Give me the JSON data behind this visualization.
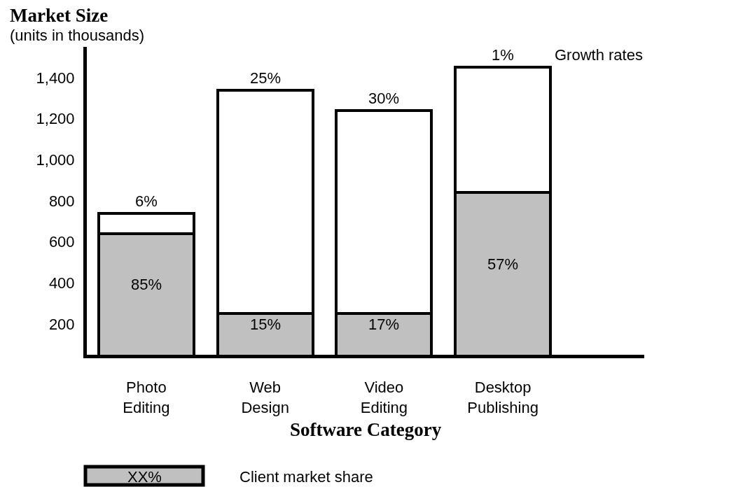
{
  "chart_data": {
    "type": "bar",
    "ylabel": "Market Size",
    "xlabel": "Software Category",
    "annotations": [
      "(units in thousands)",
      "Growth rates",
      "XX%",
      "85%",
      "15%",
      "17%",
      "57%",
      {
        "text": "6%",
        "x": "Photo Editing",
        "y": 740
      },
      {
        "text": "25%",
        "x": "Web Design",
        "y": 1340
      },
      {
        "text": "30%",
        "x": "Video Editing",
        "y": 1240
      },
      {
        "text": "1%",
        "x": "Desktop Publishing",
        "y": 1450
      }
    ],
    "categories": [
      "Photo Editing",
      "Web Design",
      "Video Editing",
      "Desktop Publishing"
    ],
    "stacked": true,
    "series": [
      {
        "name": "Client market share",
        "color": "#c0c0c0",
        "values": [
          640,
          250,
          250,
          840
        ]
      },
      {
        "color": "#ffffff",
        "values": [
          100,
          1090,
          990,
          610
        ]
      }
    ],
    "ylim": [
      50,
      1550
    ],
    "yticks": [
      200,
      400,
      600,
      800,
      {
        "value": 1000,
        "label": "1,000"
      },
      {
        "value": 1200,
        "label": "1,200"
      },
      {
        "value": 1400,
        "label": "1,400"
      }
    ],
    "legend": "bottom left"
  }
}
